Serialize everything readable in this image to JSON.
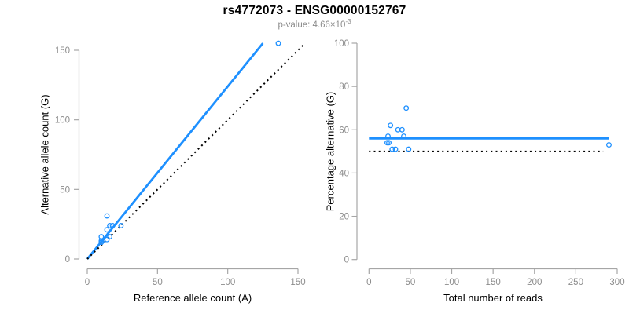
{
  "header": {
    "title": "rs4772073 - ENSG00000152767",
    "subtitle_prefix": "p-value: 4.66×10",
    "subtitle_exponent": "-3"
  },
  "colors": {
    "line_blue": "#1E90FF",
    "dotted_line": "#000000",
    "axis_line": "#a6a6a6",
    "tick_label": "#8c8c8c",
    "subtitle": "#8c8c8c",
    "title": "#000000"
  },
  "chart_data": [
    {
      "type": "scatter",
      "panel": "left",
      "xlabel": "Reference allele count (A)",
      "ylabel": "Alternative allele count (G)",
      "xlim": [
        0,
        155
      ],
      "ylim": [
        0,
        155
      ],
      "xticks": [
        0,
        50,
        100,
        150
      ],
      "yticks": [
        0,
        50,
        100,
        150
      ],
      "grid": false,
      "points": [
        [
          14,
          31
        ],
        [
          16,
          24
        ],
        [
          18,
          24
        ],
        [
          24,
          24
        ],
        [
          14,
          21
        ],
        [
          10,
          16
        ],
        [
          16,
          16
        ],
        [
          14,
          14
        ],
        [
          11,
          13
        ],
        [
          10,
          13
        ],
        [
          10,
          12
        ],
        [
          136,
          155
        ]
      ],
      "lines": [
        {
          "name": "fit-line",
          "style": "solid",
          "color_key": "line_blue",
          "x1": 0,
          "y1": 0,
          "x2": 125,
          "y2": 155
        },
        {
          "name": "identity-line",
          "style": "dotted",
          "color_key": "dotted_line",
          "x1": 0,
          "y1": 0,
          "x2": 155,
          "y2": 155
        }
      ]
    },
    {
      "type": "scatter",
      "panel": "right",
      "xlabel": "Total number of reads",
      "ylabel": "Percentage alternative (G)",
      "xlim": [
        0,
        300
      ],
      "ylim": [
        0,
        100
      ],
      "xticks": [
        0,
        50,
        100,
        150,
        200,
        250,
        300
      ],
      "yticks": [
        0,
        20,
        40,
        60,
        80,
        100
      ],
      "grid": false,
      "points": [
        [
          45,
          70
        ],
        [
          26,
          62
        ],
        [
          35,
          60
        ],
        [
          40,
          60
        ],
        [
          23,
          57
        ],
        [
          42,
          57
        ],
        [
          22,
          54
        ],
        [
          24,
          54
        ],
        [
          28,
          51
        ],
        [
          32,
          51
        ],
        [
          48,
          51
        ],
        [
          290,
          53
        ]
      ],
      "lines": [
        {
          "name": "mean-line",
          "style": "solid",
          "color_key": "line_blue",
          "x1": 0,
          "y1": 56,
          "x2": 290,
          "y2": 56
        },
        {
          "name": "null-line",
          "style": "dotted",
          "color_key": "dotted_line",
          "x1": 0,
          "y1": 50,
          "x2": 283,
          "y2": 50
        }
      ]
    }
  ]
}
